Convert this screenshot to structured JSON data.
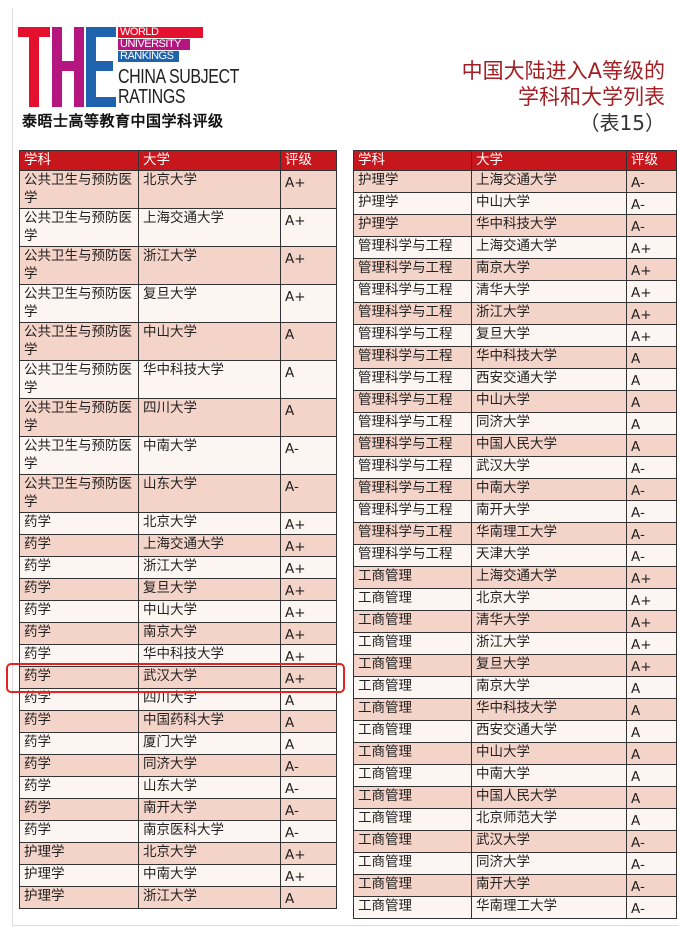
{
  "logo": {
    "letters": "THE",
    "line1": "WORLD",
    "line2": "UNIVERSITY",
    "line3": "RANKINGS",
    "line4": "CHINA SUBJECT",
    "line5": "RATINGS",
    "subtitle": "泰晤士高等教育中国学科评级",
    "colors": {
      "t": "#e4112e",
      "h": "#b5157f",
      "e": "#1f62ae"
    }
  },
  "title": {
    "line1": "中国大陆进入A等级的",
    "line2": "学科和大学列表",
    "line3": "（表15）"
  },
  "headers": [
    "学科",
    "大学",
    "评级"
  ],
  "colors": {
    "header": "#c8161d",
    "row_alt": "#f4d3c8",
    "row": "#fdf5f2",
    "highlight": "#e8231f",
    "title": "#a21e23"
  },
  "left_table": [
    [
      "公共卫生与预防医学",
      "北京大学",
      "A+"
    ],
    [
      "公共卫生与预防医学",
      "上海交通大学",
      "A+"
    ],
    [
      "公共卫生与预防医学",
      "浙江大学",
      "A+"
    ],
    [
      "公共卫生与预防医学",
      "复旦大学",
      "A+"
    ],
    [
      "公共卫生与预防医学",
      "中山大学",
      "A"
    ],
    [
      "公共卫生与预防医学",
      "华中科技大学",
      "A"
    ],
    [
      "公共卫生与预防医学",
      "四川大学",
      "A"
    ],
    [
      "公共卫生与预防医学",
      "中南大学",
      "A-"
    ],
    [
      "公共卫生与预防医学",
      "山东大学",
      "A-"
    ],
    [
      "药学",
      "北京大学",
      "A+"
    ],
    [
      "药学",
      "上海交通大学",
      "A+"
    ],
    [
      "药学",
      "浙江大学",
      "A+"
    ],
    [
      "药学",
      "复旦大学",
      "A+"
    ],
    [
      "药学",
      "中山大学",
      "A+"
    ],
    [
      "药学",
      "南京大学",
      "A+"
    ],
    [
      "药学",
      "华中科技大学",
      "A+"
    ],
    [
      "药学",
      "武汉大学",
      "A+"
    ],
    [
      "药学",
      "四川大学",
      "A"
    ],
    [
      "药学",
      "中国药科大学",
      "A"
    ],
    [
      "药学",
      "厦门大学",
      "A"
    ],
    [
      "药学",
      "同济大学",
      "A-"
    ],
    [
      "药学",
      "山东大学",
      "A-"
    ],
    [
      "药学",
      "南开大学",
      "A-"
    ],
    [
      "药学",
      "南京医科大学",
      "A-"
    ],
    [
      "护理学",
      "北京大学",
      "A+"
    ],
    [
      "护理学",
      "中南大学",
      "A+"
    ],
    [
      "护理学",
      "浙江大学",
      "A"
    ]
  ],
  "right_table": [
    [
      "护理学",
      "上海交通大学",
      "A-"
    ],
    [
      "护理学",
      "中山大学",
      "A-"
    ],
    [
      "护理学",
      "华中科技大学",
      "A-"
    ],
    [
      "管理科学与工程",
      "上海交通大学",
      "A+"
    ],
    [
      "管理科学与工程",
      "南京大学",
      "A+"
    ],
    [
      "管理科学与工程",
      "清华大学",
      "A+"
    ],
    [
      "管理科学与工程",
      "浙江大学",
      "A+"
    ],
    [
      "管理科学与工程",
      "复旦大学",
      "A+"
    ],
    [
      "管理科学与工程",
      "华中科技大学",
      "A"
    ],
    [
      "管理科学与工程",
      "西安交通大学",
      "A"
    ],
    [
      "管理科学与工程",
      "中山大学",
      "A"
    ],
    [
      "管理科学与工程",
      "同济大学",
      "A"
    ],
    [
      "管理科学与工程",
      "中国人民大学",
      "A"
    ],
    [
      "管理科学与工程",
      "武汉大学",
      "A-"
    ],
    [
      "管理科学与工程",
      "中南大学",
      "A-"
    ],
    [
      "管理科学与工程",
      "南开大学",
      "A-"
    ],
    [
      "管理科学与工程",
      "华南理工大学",
      "A-"
    ],
    [
      "管理科学与工程",
      "天津大学",
      "A-"
    ],
    [
      "工商管理",
      "上海交通大学",
      "A+"
    ],
    [
      "工商管理",
      "北京大学",
      "A+"
    ],
    [
      "工商管理",
      "清华大学",
      "A+"
    ],
    [
      "工商管理",
      "浙江大学",
      "A+"
    ],
    [
      "工商管理",
      "复旦大学",
      "A+"
    ],
    [
      "工商管理",
      "南京大学",
      "A"
    ],
    [
      "工商管理",
      "华中科技大学",
      "A"
    ],
    [
      "工商管理",
      "西安交通大学",
      "A"
    ],
    [
      "工商管理",
      "中山大学",
      "A"
    ],
    [
      "工商管理",
      "中南大学",
      "A"
    ],
    [
      "工商管理",
      "中国人民大学",
      "A"
    ],
    [
      "工商管理",
      "北京师范大学",
      "A"
    ],
    [
      "工商管理",
      "武汉大学",
      "A-"
    ],
    [
      "工商管理",
      "同济大学",
      "A-"
    ],
    [
      "工商管理",
      "南开大学",
      "A-"
    ],
    [
      "工商管理",
      "华南理工大学",
      "A-"
    ]
  ],
  "highlighted_row": {
    "table": "left",
    "index": 16
  }
}
